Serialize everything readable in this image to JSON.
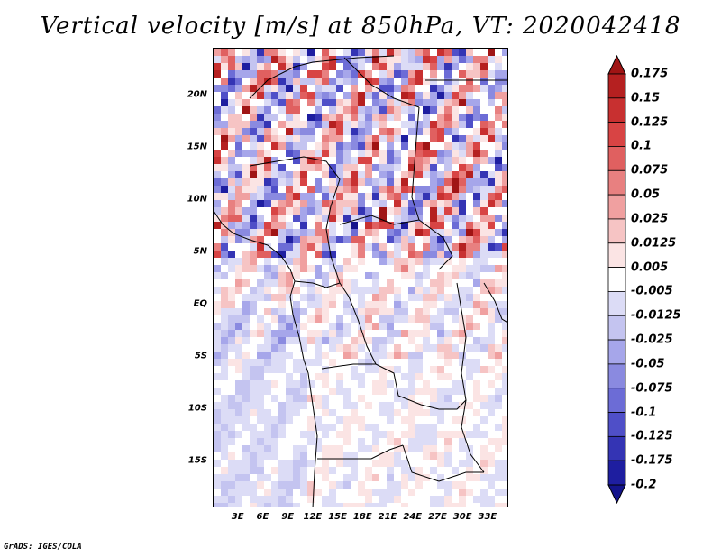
{
  "title": "Vertical velocity [m/s] at 850hPa, VT: 2020042418",
  "footer": "GrADS: IGES/COLA",
  "map": {
    "region": "Central Africa",
    "field": "vertical velocity at 850hPa",
    "lat_range": [
      -19.5,
      24.5
    ],
    "lon_range": [
      0,
      35.5
    ],
    "lat_ticks": [
      {
        "value": 20,
        "label": "20N"
      },
      {
        "value": 15,
        "label": "15N"
      },
      {
        "value": 10,
        "label": "10N"
      },
      {
        "value": 5,
        "label": "5N"
      },
      {
        "value": 0,
        "label": "EQ"
      },
      {
        "value": -5,
        "label": "5S"
      },
      {
        "value": -10,
        "label": "10S"
      },
      {
        "value": -15,
        "label": "15S"
      }
    ],
    "lon_ticks": [
      {
        "value": 3,
        "label": "3E"
      },
      {
        "value": 6,
        "label": "6E"
      },
      {
        "value": 9,
        "label": "9E"
      },
      {
        "value": 12,
        "label": "12E"
      },
      {
        "value": 15,
        "label": "15E"
      },
      {
        "value": 18,
        "label": "18E"
      },
      {
        "value": 21,
        "label": "21E"
      },
      {
        "value": 24,
        "label": "24E"
      },
      {
        "value": 27,
        "label": "27E"
      },
      {
        "value": 30,
        "label": "30E"
      },
      {
        "value": 33,
        "label": "33E"
      }
    ]
  },
  "colorbar": {
    "labels": [
      "0.175",
      "0.15",
      "0.125",
      "0.1",
      "0.075",
      "0.05",
      "0.025",
      "0.0125",
      "0.005",
      "-0.005",
      "-0.0125",
      "-0.025",
      "-0.05",
      "-0.075",
      "-0.1",
      "-0.125",
      "-0.175",
      "-0.2"
    ],
    "colors": [
      "#a01414",
      "#b52020",
      "#c83030",
      "#d84444",
      "#e06060",
      "#e88080",
      "#f0a0a0",
      "#f6c4c4",
      "#fbe4e4",
      "#ffffff",
      "#dcdcf6",
      "#c4c4f0",
      "#a6a6ea",
      "#8a8ae0",
      "#6c6cd6",
      "#4f4fc8",
      "#3434b4",
      "#1e1ea0",
      "#14148c"
    ]
  }
}
